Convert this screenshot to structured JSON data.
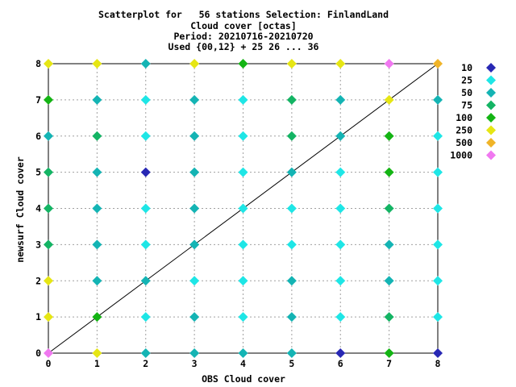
{
  "chart_data": {
    "type": "scatter",
    "title": [
      "Scatterplot for   56 stations Selection: FinlandLand",
      "Cloud cover [octas]",
      "Period: 20210716-20210720",
      "Used {00,12} + 25 26 ... 36"
    ],
    "xlabel": "OBS Cloud cover",
    "ylabel": "newsurf Cloud cover",
    "xlim": [
      0,
      8
    ],
    "ylim": [
      0,
      8
    ],
    "xticks": [
      "0",
      "1",
      "2",
      "3",
      "4",
      "5",
      "6",
      "7",
      "8"
    ],
    "yticks": [
      "0",
      "1",
      "2",
      "3",
      "4",
      "5",
      "6",
      "7",
      "8"
    ],
    "grid": true,
    "diagonal_line": true,
    "legend_position": "right",
    "legend": [
      {
        "label": "10",
        "color": "#2828b4"
      },
      {
        "label": "25",
        "color": "#1ee6e6"
      },
      {
        "label": "50",
        "color": "#14b4b4"
      },
      {
        "label": "75",
        "color": "#14b464"
      },
      {
        "label": "100",
        "color": "#14b414"
      },
      {
        "label": "250",
        "color": "#e6e614"
      },
      {
        "label": "500",
        "color": "#f0b428"
      },
      {
        "label": "1000",
        "color": "#f078f0"
      }
    ],
    "points": [
      {
        "x": 0,
        "y": 8,
        "c": 5
      },
      {
        "x": 1,
        "y": 8,
        "c": 5
      },
      {
        "x": 2,
        "y": 8,
        "c": 2
      },
      {
        "x": 3,
        "y": 8,
        "c": 5
      },
      {
        "x": 4,
        "y": 8,
        "c": 4
      },
      {
        "x": 5,
        "y": 8,
        "c": 5
      },
      {
        "x": 6,
        "y": 8,
        "c": 5
      },
      {
        "x": 7,
        "y": 8,
        "c": 7
      },
      {
        "x": 8,
        "y": 8,
        "c": 6
      },
      {
        "x": 0,
        "y": 7,
        "c": 4
      },
      {
        "x": 1,
        "y": 7,
        "c": 2
      },
      {
        "x": 2,
        "y": 7,
        "c": 1
      },
      {
        "x": 3,
        "y": 7,
        "c": 2
      },
      {
        "x": 4,
        "y": 7,
        "c": 1
      },
      {
        "x": 5,
        "y": 7,
        "c": 3
      },
      {
        "x": 6,
        "y": 7,
        "c": 2
      },
      {
        "x": 7,
        "y": 7,
        "c": 5
      },
      {
        "x": 8,
        "y": 7,
        "c": 2
      },
      {
        "x": 0,
        "y": 6,
        "c": 2
      },
      {
        "x": 1,
        "y": 6,
        "c": 3
      },
      {
        "x": 2,
        "y": 6,
        "c": 1
      },
      {
        "x": 3,
        "y": 6,
        "c": 2
      },
      {
        "x": 4,
        "y": 6,
        "c": 1
      },
      {
        "x": 5,
        "y": 6,
        "c": 3
      },
      {
        "x": 6,
        "y": 6,
        "c": 2
      },
      {
        "x": 7,
        "y": 6,
        "c": 4
      },
      {
        "x": 8,
        "y": 6,
        "c": 1
      },
      {
        "x": 0,
        "y": 5,
        "c": 3
      },
      {
        "x": 1,
        "y": 5,
        "c": 2
      },
      {
        "x": 2,
        "y": 5,
        "c": 0
      },
      {
        "x": 3,
        "y": 5,
        "c": 2
      },
      {
        "x": 4,
        "y": 5,
        "c": 1
      },
      {
        "x": 5,
        "y": 5,
        "c": 2
      },
      {
        "x": 6,
        "y": 5,
        "c": 1
      },
      {
        "x": 7,
        "y": 5,
        "c": 4
      },
      {
        "x": 8,
        "y": 5,
        "c": 1
      },
      {
        "x": 0,
        "y": 4,
        "c": 3
      },
      {
        "x": 1,
        "y": 4,
        "c": 2
      },
      {
        "x": 2,
        "y": 4,
        "c": 1
      },
      {
        "x": 3,
        "y": 4,
        "c": 2
      },
      {
        "x": 4,
        "y": 4,
        "c": 1
      },
      {
        "x": 5,
        "y": 4,
        "c": 1
      },
      {
        "x": 6,
        "y": 4,
        "c": 1
      },
      {
        "x": 7,
        "y": 4,
        "c": 3
      },
      {
        "x": 8,
        "y": 4,
        "c": 1
      },
      {
        "x": 0,
        "y": 3,
        "c": 3
      },
      {
        "x": 1,
        "y": 3,
        "c": 2
      },
      {
        "x": 2,
        "y": 3,
        "c": 1
      },
      {
        "x": 3,
        "y": 3,
        "c": 2
      },
      {
        "x": 4,
        "y": 3,
        "c": 1
      },
      {
        "x": 5,
        "y": 3,
        "c": 1
      },
      {
        "x": 6,
        "y": 3,
        "c": 1
      },
      {
        "x": 7,
        "y": 3,
        "c": 2
      },
      {
        "x": 8,
        "y": 3,
        "c": 1
      },
      {
        "x": 0,
        "y": 2,
        "c": 5
      },
      {
        "x": 1,
        "y": 2,
        "c": 2
      },
      {
        "x": 2,
        "y": 2,
        "c": 2
      },
      {
        "x": 3,
        "y": 2,
        "c": 1
      },
      {
        "x": 4,
        "y": 2,
        "c": 1
      },
      {
        "x": 5,
        "y": 2,
        "c": 2
      },
      {
        "x": 6,
        "y": 2,
        "c": 1
      },
      {
        "x": 7,
        "y": 2,
        "c": 2
      },
      {
        "x": 8,
        "y": 2,
        "c": 1
      },
      {
        "x": 0,
        "y": 1,
        "c": 5
      },
      {
        "x": 1,
        "y": 1,
        "c": 4
      },
      {
        "x": 2,
        "y": 1,
        "c": 1
      },
      {
        "x": 3,
        "y": 1,
        "c": 2
      },
      {
        "x": 4,
        "y": 1,
        "c": 1
      },
      {
        "x": 5,
        "y": 1,
        "c": 2
      },
      {
        "x": 6,
        "y": 1,
        "c": 1
      },
      {
        "x": 7,
        "y": 1,
        "c": 3
      },
      {
        "x": 8,
        "y": 1,
        "c": 1
      },
      {
        "x": 0,
        "y": 0,
        "c": 7
      },
      {
        "x": 1,
        "y": 0,
        "c": 5
      },
      {
        "x": 2,
        "y": 0,
        "c": 2
      },
      {
        "x": 3,
        "y": 0,
        "c": 2
      },
      {
        "x": 4,
        "y": 0,
        "c": 2
      },
      {
        "x": 5,
        "y": 0,
        "c": 2
      },
      {
        "x": 6,
        "y": 0,
        "c": 0
      },
      {
        "x": 7,
        "y": 0,
        "c": 4
      },
      {
        "x": 8,
        "y": 0,
        "c": 0
      }
    ]
  }
}
